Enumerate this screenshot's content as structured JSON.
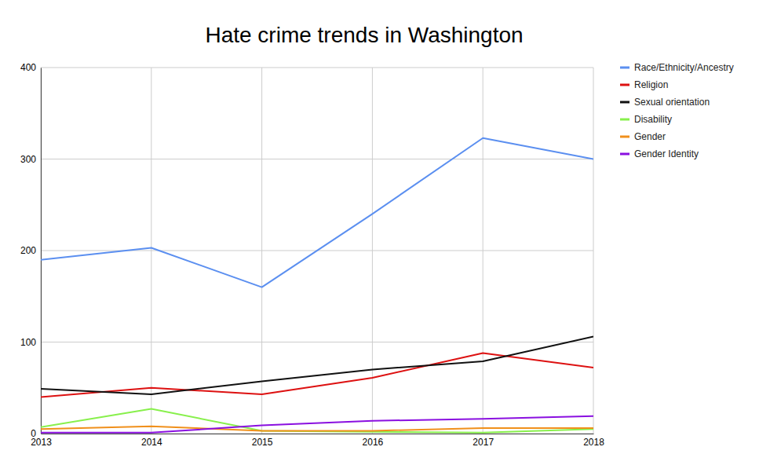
{
  "chart_data": {
    "type": "line",
    "title": "Hate crime trends in Washington",
    "x": [
      2013,
      2014,
      2015,
      2016,
      2017,
      2018
    ],
    "xlim": [
      2013,
      2018
    ],
    "xticks": [
      2013,
      2014,
      2015,
      2016,
      2017,
      2018
    ],
    "ylim": [
      0,
      400
    ],
    "yticks": [
      0,
      100,
      200,
      300,
      400
    ],
    "grid": true,
    "legend": "right",
    "series": [
      {
        "name": "Race/Ethnicity/Ancestry",
        "color": "#5b8ff0",
        "values": [
          190,
          203,
          160,
          240,
          323,
          300
        ]
      },
      {
        "name": "Religion",
        "color": "#dd1111",
        "values": [
          40,
          50,
          43,
          61,
          88,
          72
        ]
      },
      {
        "name": "Sexual orientation",
        "color": "#111111",
        "values": [
          49,
          43,
          57,
          70,
          79,
          106
        ]
      },
      {
        "name": "Disability",
        "color": "#88f04c",
        "values": [
          7,
          27,
          3,
          2,
          1,
          5
        ]
      },
      {
        "name": "Gender",
        "color": "#f0901c",
        "values": [
          5,
          8,
          3,
          3,
          6,
          6
        ]
      },
      {
        "name": "Gender Identity",
        "color": "#8a10e0",
        "values": [
          1,
          1,
          9,
          14,
          16,
          19
        ]
      }
    ]
  }
}
